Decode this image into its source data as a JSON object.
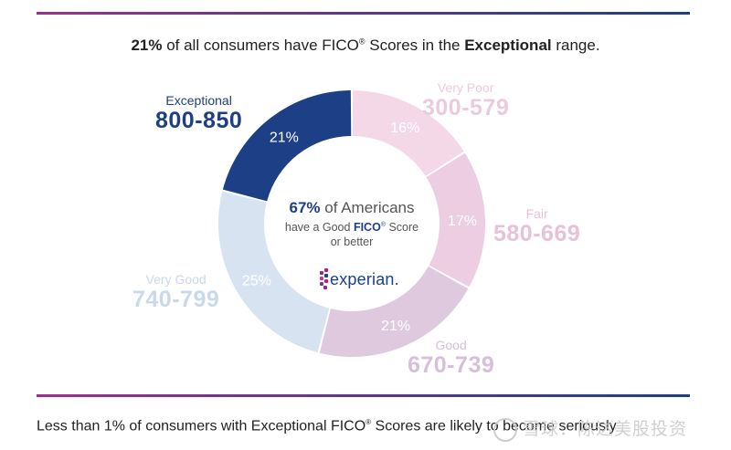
{
  "headline": {
    "pct": "21%",
    "pre": " of all consumers have FICO",
    "reg": "®",
    "mid": " Scores in the ",
    "range": "Exceptional",
    "post": " range."
  },
  "center": {
    "pct": "67%",
    "line1_rest": " of Americans",
    "line2_pre": "have a Good ",
    "line2_brand": "FICO",
    "reg": "®",
    "line2_post": " Score",
    "line3": "or better"
  },
  "logo": {
    "text": "experian."
  },
  "footer": {
    "pre": "Less than 1% of consumers with Exceptional FICO",
    "reg": "®",
    "post": " Scores are likely to become seriously"
  },
  "watermark": "雪球：陈达美股投资",
  "colors": {
    "rule_start": "#9b2f8f",
    "rule_end": "#1d3f85"
  },
  "chart_data": {
    "type": "pie",
    "donut": true,
    "title": "21% of all consumers have FICO® Scores in the Exceptional range.",
    "slices": [
      {
        "name": "Very Poor",
        "range": "300-579",
        "value": 16,
        "label": "16%",
        "color": "#f4d8e7",
        "text_color": "#eccadd"
      },
      {
        "name": "Fair",
        "range": "580-669",
        "value": 17,
        "label": "17%",
        "color": "#eccde1",
        "text_color": "#e6c1d8"
      },
      {
        "name": "Good",
        "range": "670-739",
        "value": 21,
        "label": "21%",
        "color": "#dec9df",
        "text_color": "#d6bfd8"
      },
      {
        "name": "Very Good",
        "range": "740-799",
        "value": 25,
        "label": "25%",
        "color": "#d7e3f0",
        "text_color": "#c9d9ea"
      },
      {
        "name": "Exceptional",
        "range": "800-850",
        "value": 21,
        "label": "21%",
        "color": "#1d3f85",
        "text_color": "#1d3f85"
      }
    ]
  }
}
